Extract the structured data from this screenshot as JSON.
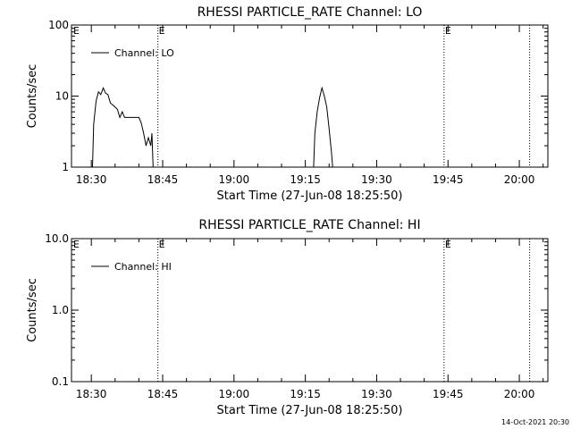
{
  "footer": {
    "timestamp": "14-Oct-2021 20:30"
  },
  "chart_data": [
    {
      "type": "line",
      "title": "RHESSI PARTICLE_RATE Channel: LO",
      "xlabel": "Start Time (27-Jun-08 18:25:50)",
      "ylabel": "Counts/sec",
      "yscale": "log",
      "ylim": [
        1,
        100
      ],
      "xlim": [
        "18:25:50",
        "20:06:00"
      ],
      "xticks": [
        "18:30",
        "18:45",
        "19:00",
        "19:15",
        "19:30",
        "19:45",
        "20:00"
      ],
      "yticks": [
        "1",
        "10",
        "100"
      ],
      "legend": {
        "position": "top-left"
      },
      "markers": [
        {
          "x": "18:44:00",
          "label": "E"
        },
        {
          "x": "19:44:10",
          "label": "E"
        },
        {
          "x": "20:02:10",
          "label": ""
        }
      ],
      "series": [
        {
          "name": "Channel: LO",
          "segments": [
            [
              [
                "18:30:15",
                1
              ],
              [
                "18:30:30",
                4.0
              ],
              [
                "18:31:00",
                8.5
              ],
              [
                "18:31:30",
                11.5
              ],
              [
                "18:32:00",
                10.5
              ],
              [
                "18:32:30",
                13.0
              ],
              [
                "18:33:00",
                11.0
              ],
              [
                "18:33:30",
                10.5
              ],
              [
                "18:34:00",
                8.0
              ],
              [
                "18:34:30",
                7.5
              ],
              [
                "18:35:00",
                7.0
              ],
              [
                "18:35:30",
                6.5
              ],
              [
                "18:36:00",
                5.0
              ],
              [
                "18:36:30",
                6.0
              ],
              [
                "18:37:00",
                5.0
              ],
              [
                "18:38:00",
                5.0
              ],
              [
                "18:39:00",
                5.0
              ],
              [
                "18:40:00",
                5.0
              ],
              [
                "18:40:30",
                4.2
              ],
              [
                "18:41:00",
                3.0
              ],
              [
                "18:41:30",
                2.0
              ],
              [
                "18:42:00",
                2.6
              ],
              [
                "18:42:30",
                2.0
              ],
              [
                "18:42:45",
                3.0
              ],
              [
                "18:43:00",
                1
              ]
            ],
            [
              [
                "19:16:45",
                1
              ],
              [
                "19:17:00",
                3.0
              ],
              [
                "19:17:30",
                6.0
              ],
              [
                "19:18:00",
                9.5
              ],
              [
                "19:18:30",
                13.0
              ],
              [
                "19:19:00",
                10.0
              ],
              [
                "19:19:30",
                7.0
              ],
              [
                "19:20:00",
                3.5
              ],
              [
                "19:20:30",
                1.6
              ],
              [
                "19:20:45",
                1
              ]
            ]
          ]
        }
      ]
    },
    {
      "type": "line",
      "title": "RHESSI PARTICLE_RATE Channel: HI",
      "xlabel": "Start Time (27-Jun-08 18:25:50)",
      "ylabel": "Counts/sec",
      "yscale": "log",
      "ylim": [
        0.1,
        10
      ],
      "xlim": [
        "18:25:50",
        "20:06:00"
      ],
      "xticks": [
        "18:30",
        "18:45",
        "19:00",
        "19:15",
        "19:30",
        "19:45",
        "20:00"
      ],
      "yticks": [
        "0.1",
        "1.0",
        "10.0"
      ],
      "legend": {
        "position": "top-left"
      },
      "markers": [
        {
          "x": "18:44:00",
          "label": "E"
        },
        {
          "x": "19:44:10",
          "label": "E"
        },
        {
          "x": "20:02:10",
          "label": ""
        }
      ],
      "series": [
        {
          "name": "Channel: HI",
          "segments": []
        }
      ]
    }
  ]
}
